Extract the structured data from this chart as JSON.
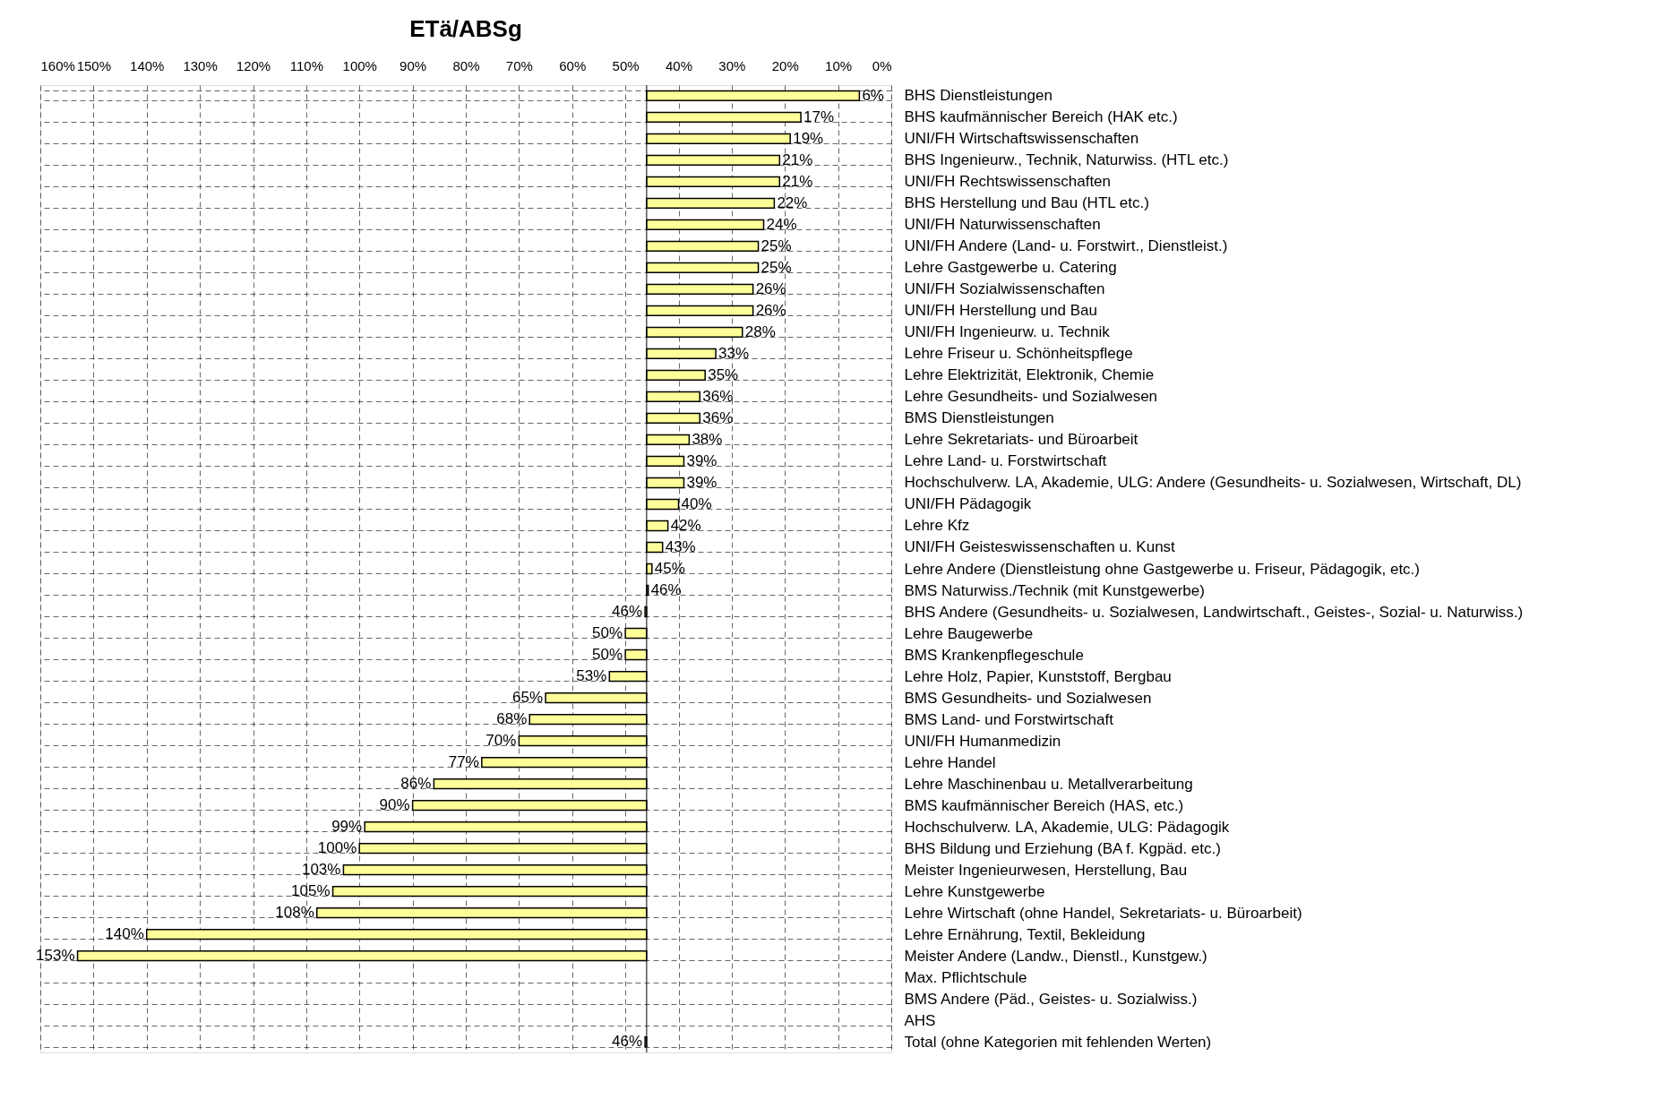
{
  "chart_data": {
    "type": "bar",
    "orientation": "horizontal",
    "title": "ETä/ABSg",
    "categories": [
      "BHS Dienstleistungen",
      "BHS kaufmännischer Bereich (HAK etc.)",
      "UNI/FH Wirtschaftswissenschaften",
      "BHS Ingenieurw., Technik, Naturwiss. (HTL etc.)",
      "UNI/FH Rechtswissenschaften",
      "BHS Herstellung und Bau (HTL etc.)",
      "UNI/FH Naturwissenschaften",
      "UNI/FH Andere (Land- u. Forstwirt., Dienstleist.)",
      "Lehre Gastgewerbe u. Catering",
      "UNI/FH Sozialwissenschaften",
      "UNI/FH Herstellung und Bau",
      "UNI/FH Ingenieurw. u. Technik",
      "Lehre Friseur u. Schönheitspflege",
      "Lehre Elektrizität, Elektronik, Chemie",
      "Lehre Gesundheits- und Sozialwesen",
      "BMS Dienstleistungen",
      "Lehre Sekretariats- und Büroarbeit",
      "Lehre Land- u. Forstwirtschaft",
      "Hochschulverw. LA, Akademie, ULG: Andere (Gesundheits- u. Sozialwesen, Wirtschaft, DL)",
      "UNI/FH Pädagogik",
      "Lehre Kfz",
      "UNI/FH Geisteswissenschaften u. Kunst",
      "Lehre Andere (Dienstleistung ohne Gastgewerbe u. Friseur, Pädagogik, etc.)",
      "BMS Naturwiss./Technik (mit Kunstgewerbe)",
      "BHS Andere (Gesundheits- u. Sozialwesen, Landwirtschaft., Geistes-, Sozial- u. Naturwiss.)",
      "Lehre Baugewerbe",
      "BMS Krankenpflegeschule",
      "Lehre Holz, Papier, Kunststoff, Bergbau",
      "BMS Gesundheits- und Sozialwesen",
      "BMS Land- und Forstwirtschaft",
      "UNI/FH Humanmedizin",
      "Lehre Handel",
      "Lehre Maschinenbau u. Metallverarbeitung",
      "BMS kaufmännischer Bereich (HAS, etc.)",
      "Hochschulverw. LA, Akademie, ULG: Pädagogik",
      "BHS Bildung und Erziehung (BA f. Kgpäd. etc.)",
      "Meister Ingenieurwesen, Herstellung, Bau",
      "Lehre Kunstgewerbe",
      "Lehre Wirtschaft (ohne Handel, Sekretariats- u. Büroarbeit)",
      "Lehre Ernährung, Textil, Bekleidung",
      "Meister Andere (Landw., Dienstl., Kunstgew.)",
      "Max. Pflichtschule",
      "BMS Andere (Päd., Geistes- u. Sozialwiss.)",
      "AHS",
      "Total (ohne Kategorien mit fehlenden Werten)"
    ],
    "base": [
      46,
      46,
      46,
      46,
      46,
      46,
      46,
      46,
      46,
      46,
      46,
      46,
      46,
      46,
      46,
      46,
      46,
      46,
      46,
      46,
      46,
      46,
      46,
      46,
      46,
      46,
      46,
      46,
      46,
      46,
      46,
      46,
      46,
      46,
      46,
      46,
      46,
      46,
      46,
      46,
      46,
      null,
      null,
      null,
      46
    ],
    "values": [
      -40,
      -29,
      -27,
      -25,
      -25,
      -24,
      -22,
      -21,
      -21,
      -20,
      -20,
      -18,
      -13,
      -11,
      -10,
      -10,
      -8,
      -7,
      -7,
      -6,
      -4,
      -3,
      -1,
      -0.3,
      0.3,
      4,
      4,
      7,
      19,
      22,
      24,
      31,
      40,
      44,
      53,
      54,
      57,
      59,
      62,
      94,
      107,
      null,
      null,
      null,
      0.3
    ],
    "value_labels": [
      "6%",
      "17%",
      "19%",
      "21%",
      "21%",
      "22%",
      "24%",
      "25%",
      "25%",
      "26%",
      "26%",
      "28%",
      "33%",
      "35%",
      "36%",
      "36%",
      "38%",
      "39%",
      "39%",
      "40%",
      "42%",
      "43%",
      "45%",
      "46%",
      "46%",
      "50%",
      "50%",
      "53%",
      "65%",
      "68%",
      "70%",
      "77%",
      "86%",
      "90%",
      "99%",
      "100%",
      "103%",
      "105%",
      "108%",
      "140%",
      "153%",
      null,
      null,
      null,
      "46%"
    ],
    "color": "#ffff99",
    "xlim": [
      160,
      0
    ],
    "xticks": [
      {
        "value": 160,
        "label": "160%"
      },
      {
        "value": 150,
        "label": "150%"
      },
      {
        "value": 140,
        "label": "140%"
      },
      {
        "value": 130,
        "label": "130%"
      },
      {
        "value": 120,
        "label": "120%"
      },
      {
        "value": 110,
        "label": "110%"
      },
      {
        "value": 100,
        "label": "100%"
      },
      {
        "value": 90,
        "label": "90%"
      },
      {
        "value": 80,
        "label": "80%"
      },
      {
        "value": 70,
        "label": "70%"
      },
      {
        "value": 60,
        "label": "60%"
      },
      {
        "value": 50,
        "label": "50%"
      },
      {
        "value": 40,
        "label": "40%"
      },
      {
        "value": 30,
        "label": "30%"
      },
      {
        "value": 20,
        "label": "20%"
      },
      {
        "value": 10,
        "label": "10%"
      },
      {
        "value": 0,
        "label": "0%"
      }
    ],
    "ref_lines": [
      {
        "axis": "x",
        "value": 46,
        "label": null
      }
    ],
    "grid": true
  }
}
